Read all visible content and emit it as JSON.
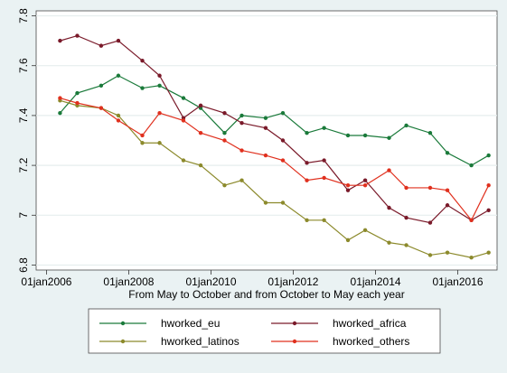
{
  "chart_data": {
    "type": "line",
    "xlabel": "From May to October and from October to May each year",
    "ylabel": "",
    "xlim": [
      "2005-10-01",
      "2016-12-15"
    ],
    "ylim": [
      6.78,
      7.82
    ],
    "x_ticks": [
      {
        "date": "2006-01-01",
        "label": "01jan2006"
      },
      {
        "date": "2008-01-01",
        "label": "01jan2008"
      },
      {
        "date": "2010-01-01",
        "label": "01jan2010"
      },
      {
        "date": "2012-01-01",
        "label": "01jan2012"
      },
      {
        "date": "2014-01-01",
        "label": "01jan2014"
      },
      {
        "date": "2016-01-01",
        "label": "01jan2016"
      }
    ],
    "y_ticks": [
      {
        "value": 6.8,
        "label": "6.8"
      },
      {
        "value": 7,
        "label": "7"
      },
      {
        "value": 7.2,
        "label": "7.2"
      },
      {
        "value": 7.4,
        "label": "7.4"
      },
      {
        "value": 7.6,
        "label": "7.6"
      },
      {
        "value": 7.8,
        "label": "7.8"
      }
    ],
    "grid": true,
    "legend_position": "bottom",
    "x": [
      "2006-05-01",
      "2006-10-01",
      "2007-05-01",
      "2007-10-01",
      "2008-05-01",
      "2008-10-01",
      "2009-05-01",
      "2009-10-01",
      "2010-05-01",
      "2010-10-01",
      "2011-05-01",
      "2011-10-01",
      "2012-05-01",
      "2012-10-01",
      "2013-05-01",
      "2013-10-01",
      "2014-05-01",
      "2014-10-01",
      "2015-05-01",
      "2015-10-01",
      "2016-05-01",
      "2016-10-01"
    ],
    "series": [
      {
        "name": "hworked_eu",
        "color": "#1a7a3a",
        "values": [
          7.41,
          7.49,
          7.52,
          7.56,
          7.51,
          7.52,
          7.47,
          7.43,
          7.33,
          7.4,
          7.39,
          7.41,
          7.33,
          7.35,
          7.32,
          7.32,
          7.31,
          7.36,
          7.33,
          7.25,
          7.2,
          7.24
        ]
      },
      {
        "name": "hworked_africa",
        "color": "#7a1a2a",
        "values": [
          7.7,
          7.72,
          7.68,
          7.7,
          7.62,
          7.56,
          7.39,
          7.44,
          7.41,
          7.37,
          7.35,
          7.3,
          7.21,
          7.22,
          7.1,
          7.14,
          7.03,
          6.99,
          6.97,
          7.04,
          6.98,
          7.02
        ]
      },
      {
        "name": "hworked_latinos",
        "color": "#8c8a2c",
        "values": [
          7.46,
          7.44,
          7.43,
          7.4,
          7.29,
          7.29,
          7.22,
          7.2,
          7.12,
          7.14,
          7.05,
          7.05,
          6.98,
          6.98,
          6.9,
          6.94,
          6.89,
          6.88,
          6.84,
          6.85,
          6.83,
          6.85
        ]
      },
      {
        "name": "hworked_others",
        "color": "#e0301e",
        "values": [
          7.47,
          7.45,
          7.43,
          7.38,
          7.32,
          7.41,
          7.38,
          7.33,
          7.3,
          7.26,
          7.24,
          7.22,
          7.14,
          7.15,
          7.12,
          7.12,
          7.18,
          7.11,
          7.11,
          7.1,
          6.98,
          7.12
        ]
      }
    ]
  }
}
